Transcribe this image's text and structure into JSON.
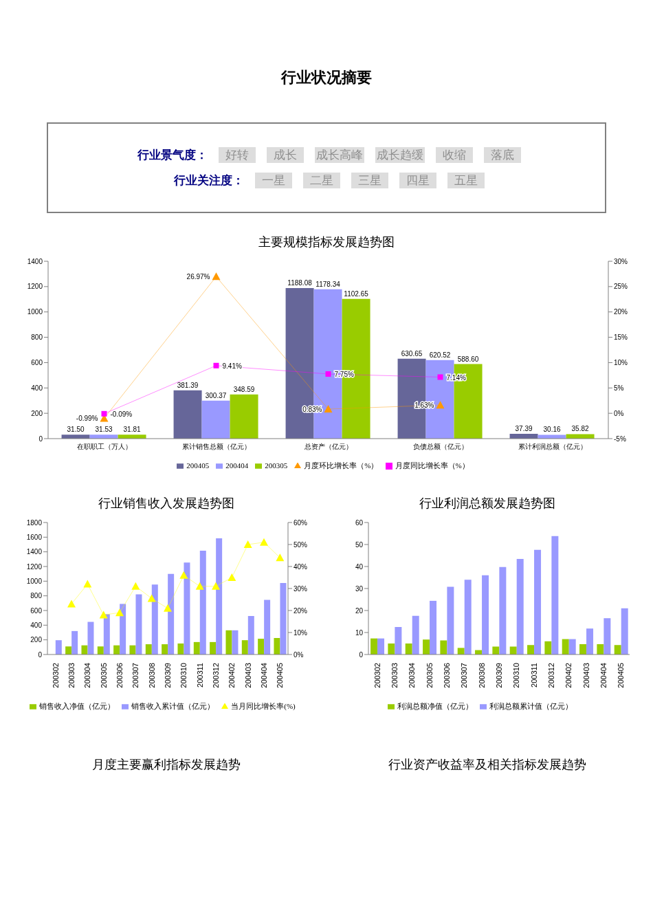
{
  "chart_data": [
    {
      "type": "other",
      "title": "行业状况摘要",
      "annotations": [
        "行业景气度：",
        "好转",
        "成长",
        "成长高峰",
        "成长趋缓",
        "收缩",
        "落底",
        "行业关注度：",
        "一星",
        "二星",
        "三星",
        "四星",
        "五星"
      ]
    },
    {
      "type": "bar",
      "title": "主要规模指标发展趋势图",
      "categories": [
        "在职职工（万人）",
        "累计销售总额（亿元）",
        "总资产（亿元）",
        "负债总额（亿元）",
        "累计利润总额（亿元）"
      ],
      "series": [
        {
          "name": "200405",
          "color": "#666699",
          "values": [
            31.5,
            381.39,
            1188.08,
            630.65,
            37.39
          ],
          "value_labels": [
            "31.50",
            "381.39",
            "1188.08",
            "630.65",
            "37.39"
          ]
        },
        {
          "name": "200404",
          "color": "#9999ff",
          "values": [
            31.53,
            300.37,
            1178.34,
            620.52,
            30.16
          ],
          "value_labels": [
            "31.53",
            "300.37",
            "1178.34",
            "620.52",
            "30.16"
          ]
        },
        {
          "name": "200305",
          "color": "#99cc00",
          "values": [
            31.81,
            348.59,
            1102.65,
            588.6,
            35.82
          ],
          "value_labels": [
            "31.81",
            "348.59",
            "1102.65",
            "588.60",
            "35.82"
          ]
        },
        {
          "name": "月度环比增长率（%）",
          "type": "line",
          "axis": "y2",
          "marker": "triangle",
          "color": "#ff9900",
          "values": [
            -0.99,
            26.97,
            0.83,
            1.63,
            null
          ],
          "value_labels": [
            "-0.99%",
            "26.97%",
            "0.83%",
            "1.63%",
            null
          ]
        },
        {
          "name": "月度同比增长率（%）",
          "type": "line",
          "axis": "y2",
          "marker": "square",
          "color": "#ff00ff",
          "values": [
            -0.09,
            9.41,
            7.75,
            7.14,
            null
          ],
          "value_labels": [
            "-0.09%",
            "9.41%",
            "7.75%",
            "7.14%",
            null
          ]
        }
      ],
      "ylim": [
        0,
        1400
      ],
      "yticks": [
        0,
        200,
        400,
        600,
        800,
        1000,
        1200,
        1400
      ],
      "y2lim": [
        -5,
        30
      ],
      "y2ticks": [
        {
          "value": -5,
          "label": "-5%"
        },
        {
          "value": 0,
          "label": "0%"
        },
        {
          "value": 5,
          "label": "5%"
        },
        {
          "value": 10,
          "label": "10%"
        },
        {
          "value": 15,
          "label": "15%"
        },
        {
          "value": 20,
          "label": "20%"
        },
        {
          "value": 25,
          "label": "25%"
        },
        {
          "value": 30,
          "label": "30%"
        }
      ],
      "legend": "bottom"
    },
    {
      "type": "bar",
      "title": "行业销售收入发展趋势图",
      "categories": [
        "200302",
        "200303",
        "200304",
        "200305",
        "200306",
        "200307",
        "200308",
        "200309",
        "200310",
        "200311",
        "200312",
        "200402",
        "200403",
        "200404",
        "200405"
      ],
      "series": [
        {
          "name": "销售收入净值（亿元）",
          "color": "#99cc00",
          "values": [
            null,
            110,
            125,
            110,
            125,
            125,
            140,
            140,
            150,
            170,
            170,
            330,
            195,
            215,
            225
          ]
        },
        {
          "name": "销售收入累计值（亿元）",
          "color": "#9999ff",
          "values": [
            195,
            320,
            445,
            550,
            690,
            820,
            955,
            1100,
            1255,
            1415,
            1585,
            330,
            525,
            745,
            975
          ]
        },
        {
          "name": "当月同比增长率(%)",
          "type": "line",
          "axis": "y2",
          "marker": "triangle",
          "color": "#ffff00",
          "values": [
            null,
            23,
            32,
            18,
            19,
            31,
            25.5,
            21,
            36,
            31,
            31,
            35,
            50,
            51,
            44
          ]
        }
      ],
      "ylim": [
        0,
        1800
      ],
      "yticks": [
        0,
        200,
        400,
        600,
        800,
        1000,
        1200,
        1400,
        1600,
        1800
      ],
      "y2lim": [
        0,
        60
      ],
      "y2ticks": [
        {
          "value": 0,
          "label": "0%"
        },
        {
          "value": 10,
          "label": "10%"
        },
        {
          "value": 20,
          "label": "20%"
        },
        {
          "value": 30,
          "label": "30%"
        },
        {
          "value": 40,
          "label": "40%"
        },
        {
          "value": 50,
          "label": "50%"
        },
        {
          "value": 60,
          "label": "60%"
        }
      ],
      "legend": "bottom"
    },
    {
      "type": "bar",
      "title": "行业利润总额发展趋势图",
      "categories": [
        "200302",
        "200303",
        "200304",
        "200305",
        "200306",
        "200307",
        "200308",
        "200309",
        "200310",
        "200311",
        "200312",
        "200402",
        "200403",
        "200404",
        "200405"
      ],
      "series": [
        {
          "name": "利润总额净值（亿元）",
          "color": "#99cc00",
          "values": [
            7.3,
            5,
            5,
            6.8,
            6.4,
            3,
            2,
            3.6,
            3.6,
            4.3,
            6,
            7,
            4.7,
            4.7,
            4.3
          ]
        },
        {
          "name": "利润总额累计值（亿元）",
          "color": "#9999ff",
          "values": [
            7.3,
            12.5,
            17.6,
            24.4,
            30.8,
            34,
            36,
            39.8,
            43.4,
            47.6,
            53.8,
            7,
            11.8,
            16.5,
            21
          ]
        }
      ],
      "ylim": [
        0,
        60
      ],
      "yticks": [
        0,
        10,
        20,
        30,
        40,
        50,
        60
      ],
      "legend": "bottom"
    },
    {
      "type": "other",
      "title": "月度主要赢利指标发展趋势"
    },
    {
      "type": "other",
      "title": "行业资产收益率及相关指标发展趋势"
    }
  ]
}
